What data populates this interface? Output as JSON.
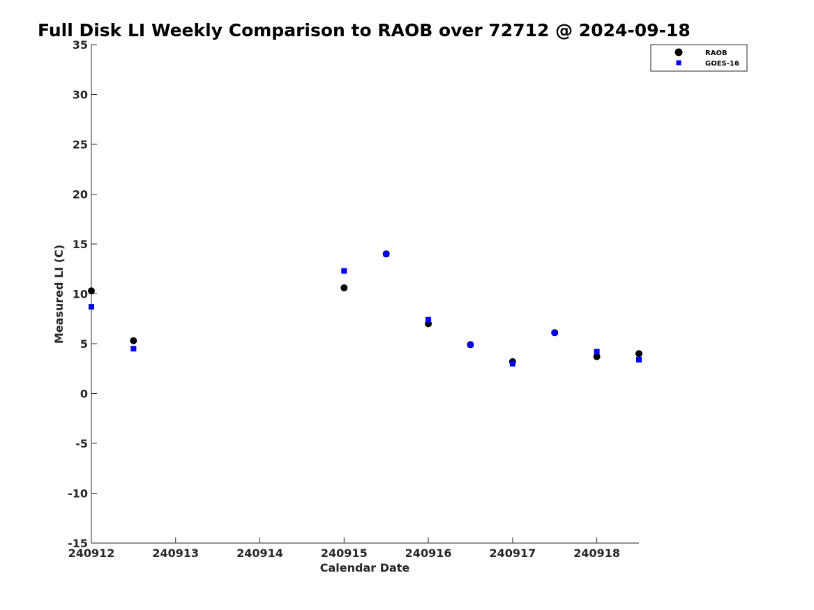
{
  "chart_data": {
    "type": "scatter",
    "title": "Full Disk LI Weekly Comparison to RAOB over 72712 @ 2024-09-18",
    "xlabel": "Calendar Date",
    "ylabel": "Measured LI (C)",
    "xlim": [
      "240912",
      "240918.5"
    ],
    "ylim": [
      -15,
      35
    ],
    "x_ticks": [
      "240912",
      "240913",
      "240914",
      "240915",
      "240916",
      "240917",
      "240918"
    ],
    "y_ticks": [
      35,
      30,
      25,
      20,
      15,
      10,
      5,
      0,
      -5,
      -10,
      -15
    ],
    "grid": false,
    "legend_position": "top-right",
    "series": [
      {
        "name": "RAOB",
        "marker": "circle",
        "color": "#000000",
        "points": [
          {
            "x": "240912 00Z",
            "y": 10.3
          },
          {
            "x": "240912 12Z",
            "y": 5.3
          },
          {
            "x": "240915 00Z",
            "y": 10.6
          },
          {
            "x": "240915 12Z",
            "y": 14.0
          },
          {
            "x": "240916 00Z",
            "y": 7.0
          },
          {
            "x": "240916 12Z",
            "y": 4.9
          },
          {
            "x": "240917 00Z",
            "y": 3.2
          },
          {
            "x": "240917 12Z",
            "y": 6.1
          },
          {
            "x": "240918 00Z",
            "y": 3.7
          },
          {
            "x": "240918 12Z",
            "y": 4.0
          }
        ]
      },
      {
        "name": "GOES-16",
        "marker": "square",
        "color": "#0000ff",
        "points": [
          {
            "x": "240912 00Z",
            "y": 8.7
          },
          {
            "x": "240912 12Z",
            "y": 4.5
          },
          {
            "x": "240915 00Z",
            "y": 12.3
          },
          {
            "x": "240915 12Z",
            "y": 14.0
          },
          {
            "x": "240916 00Z",
            "y": 7.4
          },
          {
            "x": "240916 12Z",
            "y": 4.9
          },
          {
            "x": "240917 00Z",
            "y": 3.0
          },
          {
            "x": "240917 12Z",
            "y": 6.1
          },
          {
            "x": "240918 00Z",
            "y": 4.2
          },
          {
            "x": "240918 12Z",
            "y": 3.4
          }
        ]
      }
    ]
  }
}
